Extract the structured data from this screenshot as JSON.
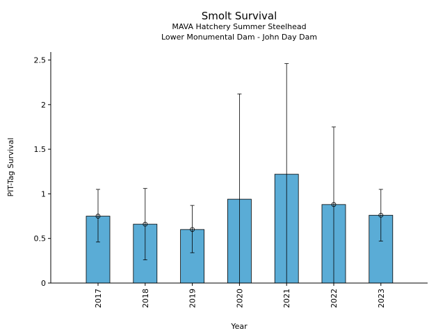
{
  "chart_data": {
    "type": "bar",
    "title": "Smolt Survival",
    "subtitle_1": "MAVA Hatchery Summer Steelhead",
    "subtitle_2": "Lower Monumental Dam - John Day Dam",
    "xlabel": "Year",
    "ylabel": "PIT-Tag Survival",
    "categories": [
      "2017",
      "2018",
      "2019",
      "2020",
      "2021",
      "2022",
      "2023"
    ],
    "series": [
      {
        "values": [
          0.75,
          0.66,
          0.6,
          0.94,
          1.22,
          0.88,
          0.76
        ],
        "points": [
          0.75,
          0.66,
          0.6,
          null,
          null,
          0.88,
          0.76
        ],
        "lower": [
          0.46,
          0.26,
          0.34,
          0.0,
          0.0,
          0.0,
          0.47
        ],
        "upper": [
          1.05,
          1.06,
          0.87,
          2.12,
          2.46,
          1.75,
          1.05
        ]
      }
    ],
    "ylim": [
      0,
      2.6
    ],
    "yticks": [
      0,
      0.5,
      1,
      1.5,
      2,
      2.5
    ],
    "ytick_labels": [
      "0",
      "0.5",
      "1",
      "1.5",
      "2",
      "2.5"
    ],
    "grid": false,
    "legend": "none",
    "colors": {
      "bar": "#5aacd6",
      "edge": "#000000"
    }
  }
}
